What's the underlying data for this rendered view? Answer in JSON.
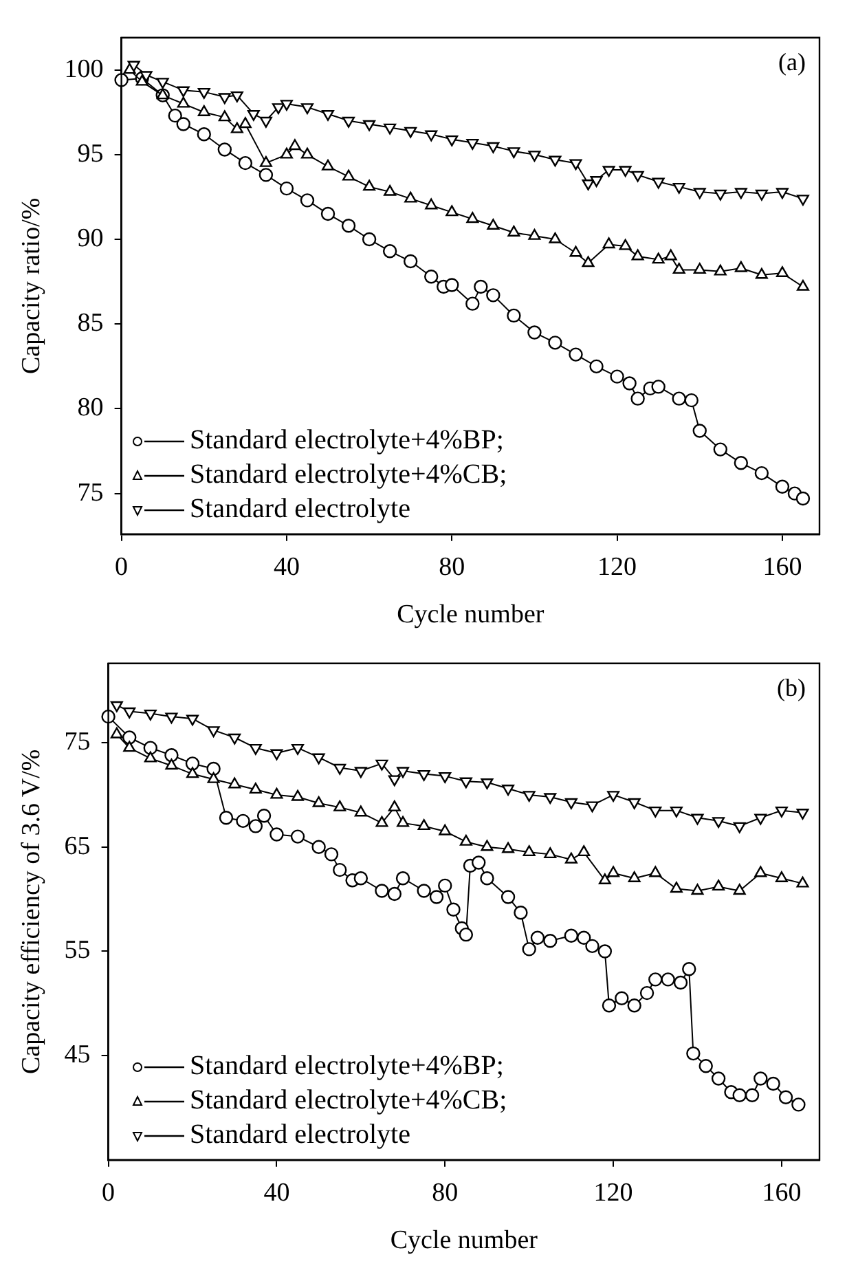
{
  "chart_data": [
    {
      "type": "line",
      "annotations": [
        "(a)"
      ],
      "xlabel": "Cycle number",
      "ylabel": "Capacity ratio/%",
      "xlim": [
        0,
        169
      ],
      "xticks": [
        0,
        40,
        80,
        120,
        160
      ],
      "ylim": [
        72.6,
        101.9
      ],
      "yticks": [
        75,
        80,
        85,
        90,
        95,
        100
      ],
      "grid": false,
      "legend": "bottom left",
      "series": [
        {
          "name": "Standard electrolyte+4%BP;",
          "color": "#000000",
          "marker": "circle",
          "x": [
            0,
            5,
            10,
            13,
            15,
            20,
            25,
            30,
            35,
            40,
            45,
            50,
            55,
            60,
            65,
            70,
            75,
            78,
            80,
            85,
            87,
            90,
            95,
            100,
            105,
            110,
            115,
            120,
            123,
            125,
            128,
            130,
            135,
            138,
            140,
            145,
            150,
            155,
            160,
            163,
            165
          ],
          "values": [
            99.4,
            99.5,
            98.5,
            97.3,
            96.8,
            96.2,
            95.3,
            94.5,
            93.8,
            93.0,
            92.3,
            91.5,
            90.8,
            90.0,
            89.3,
            88.7,
            87.8,
            87.2,
            87.3,
            86.2,
            87.2,
            86.7,
            85.5,
            84.5,
            83.9,
            83.2,
            82.5,
            81.9,
            81.5,
            80.6,
            81.2,
            81.3,
            80.6,
            80.5,
            78.7,
            77.6,
            76.8,
            76.2,
            75.4,
            75.0,
            74.7
          ]
        },
        {
          "name": "Standard electrolyte+4%CB;",
          "color": "#000000",
          "marker": "triangle",
          "x": [
            2,
            5,
            10,
            15,
            20,
            25,
            28,
            30,
            35,
            40,
            42,
            45,
            50,
            55,
            60,
            65,
            70,
            75,
            80,
            85,
            90,
            95,
            100,
            105,
            110,
            113,
            118,
            122,
            125,
            130,
            133,
            135,
            140,
            145,
            150,
            155,
            160,
            165
          ],
          "values": [
            100.0,
            99.3,
            98.5,
            98.0,
            97.5,
            97.2,
            96.5,
            96.8,
            94.5,
            95.0,
            95.5,
            95.0,
            94.3,
            93.7,
            93.1,
            92.8,
            92.4,
            92.0,
            91.6,
            91.2,
            90.8,
            90.4,
            90.2,
            90.0,
            89.2,
            88.6,
            89.7,
            89.6,
            89.0,
            88.8,
            89.0,
            88.2,
            88.2,
            88.1,
            88.3,
            87.9,
            88.0,
            87.2
          ]
        },
        {
          "name": "Standard electrolyte",
          "color": "#000000",
          "marker": "triangle_down",
          "x": [
            3,
            6,
            10,
            15,
            20,
            25,
            28,
            32,
            35,
            38,
            40,
            45,
            50,
            55,
            60,
            65,
            70,
            75,
            80,
            85,
            90,
            95,
            100,
            105,
            110,
            113,
            115,
            118,
            122,
            125,
            130,
            135,
            140,
            145,
            150,
            155,
            160,
            165
          ],
          "values": [
            100.3,
            99.7,
            99.3,
            98.8,
            98.7,
            98.4,
            98.5,
            97.4,
            97.0,
            97.8,
            98.0,
            97.8,
            97.4,
            97.0,
            96.8,
            96.6,
            96.4,
            96.2,
            95.9,
            95.7,
            95.5,
            95.2,
            95.0,
            94.7,
            94.5,
            93.3,
            93.5,
            94.1,
            94.1,
            93.8,
            93.4,
            93.1,
            92.8,
            92.7,
            92.8,
            92.7,
            92.8,
            92.4
          ]
        }
      ]
    },
    {
      "type": "line",
      "annotations": [
        "(b)"
      ],
      "xlabel": "Cycle number",
      "ylabel": "Capacity efficiency of 3.6 V/%",
      "xlim": [
        0,
        169
      ],
      "xticks": [
        0,
        40,
        80,
        120,
        160
      ],
      "ylim": [
        35,
        82.6
      ],
      "yticks": [
        45,
        55,
        65,
        75
      ],
      "grid": false,
      "legend": "bottom left",
      "series": [
        {
          "name": "Standard electrolyte+4%BP;",
          "color": "#000000",
          "marker": "circle",
          "x": [
            0,
            5,
            10,
            15,
            20,
            25,
            28,
            32,
            35,
            37,
            40,
            45,
            50,
            53,
            55,
            58,
            60,
            65,
            68,
            70,
            75,
            78,
            80,
            82,
            84,
            85,
            86,
            88,
            90,
            95,
            98,
            100,
            102,
            105,
            110,
            113,
            115,
            118,
            119,
            122,
            125,
            128,
            130,
            133,
            136,
            138,
            139,
            142,
            145,
            148,
            150,
            153,
            155,
            158,
            161,
            164
          ],
          "values": [
            77.5,
            75.5,
            74.5,
            73.8,
            73.0,
            72.5,
            67.8,
            67.5,
            67.0,
            68.0,
            66.2,
            66.0,
            65.0,
            64.3,
            62.8,
            61.8,
            62.0,
            60.8,
            60.5,
            62.0,
            60.8,
            60.2,
            61.3,
            59.0,
            57.2,
            56.6,
            63.2,
            63.5,
            62.0,
            60.2,
            58.7,
            55.2,
            56.3,
            56.0,
            56.5,
            56.3,
            55.5,
            55.0,
            49.8,
            50.5,
            49.8,
            51.0,
            52.3,
            52.3,
            52.0,
            53.3,
            45.2,
            44.0,
            42.8,
            41.5,
            41.2,
            41.2,
            42.8,
            42.3,
            41.0,
            40.3
          ]
        },
        {
          "name": "Standard electrolyte+4%CB;",
          "color": "#000000",
          "marker": "triangle",
          "x": [
            2,
            5,
            10,
            15,
            20,
            25,
            30,
            35,
            40,
            45,
            50,
            55,
            60,
            65,
            68,
            70,
            75,
            80,
            85,
            90,
            95,
            100,
            105,
            110,
            113,
            118,
            120,
            125,
            130,
            135,
            140,
            145,
            150,
            155,
            160,
            165
          ],
          "values": [
            75.8,
            74.5,
            73.5,
            72.8,
            72.0,
            71.5,
            71.0,
            70.5,
            70.0,
            69.8,
            69.2,
            68.8,
            68.3,
            67.3,
            68.8,
            67.3,
            67.0,
            66.5,
            65.5,
            65.0,
            64.8,
            64.5,
            64.3,
            63.8,
            64.5,
            61.8,
            62.5,
            62.0,
            62.5,
            61.0,
            60.8,
            61.2,
            60.8,
            62.5,
            62.0,
            61.5
          ]
        },
        {
          "name": "Standard electrolyte",
          "color": "#000000",
          "marker": "triangle_down",
          "x": [
            2,
            5,
            10,
            15,
            20,
            25,
            30,
            35,
            40,
            45,
            50,
            55,
            60,
            65,
            68,
            70,
            75,
            80,
            85,
            90,
            95,
            100,
            105,
            110,
            115,
            120,
            125,
            130,
            135,
            140,
            145,
            150,
            155,
            160,
            165
          ],
          "values": [
            78.6,
            78.0,
            77.8,
            77.5,
            77.3,
            76.2,
            75.5,
            74.5,
            74.0,
            74.5,
            73.6,
            72.6,
            72.3,
            73.0,
            71.5,
            72.3,
            72.0,
            71.8,
            71.3,
            71.2,
            70.6,
            70.0,
            69.8,
            69.3,
            69.0,
            70.0,
            69.3,
            68.5,
            68.5,
            67.8,
            67.5,
            67.0,
            67.8,
            68.5,
            68.3
          ]
        }
      ]
    }
  ]
}
